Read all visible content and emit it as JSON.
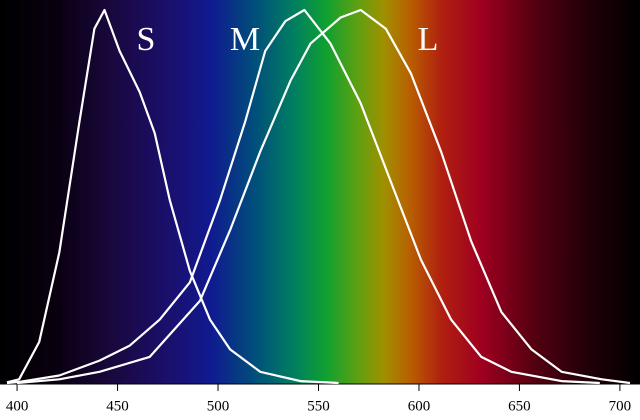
{
  "chart_data": {
    "type": "line",
    "series": [
      {
        "name": "S",
        "color": "#ffffff",
        "x": [
          395,
          401,
          411,
          421,
          431,
          438.5,
          443.5,
          451,
          461,
          468.5,
          476,
          486,
          496,
          506,
          521,
          541,
          560
        ],
        "values": [
          0.002,
          0.01,
          0.11,
          0.35,
          0.7,
          0.95,
          1.0,
          0.89,
          0.78,
          0.67,
          0.49,
          0.3,
          0.17,
          0.09,
          0.03,
          0.005,
          0.0
        ]
      },
      {
        "name": "M",
        "color": "#ffffff",
        "x": [
          395,
          401,
          421,
          441,
          456,
          471,
          486,
          501,
          513.5,
          523.5,
          533.5,
          543,
          556,
          571,
          586,
          601,
          616,
          631,
          646,
          671,
          690
        ],
        "values": [
          0.0,
          0.003,
          0.02,
          0.06,
          0.1,
          0.17,
          0.27,
          0.49,
          0.7,
          0.89,
          0.97,
          1.0,
          0.91,
          0.75,
          0.54,
          0.33,
          0.17,
          0.07,
          0.03,
          0.005,
          0.0
        ]
      },
      {
        "name": "L",
        "color": "#ffffff",
        "x": [
          400,
          421,
          441,
          466,
          491,
          506,
          521,
          536,
          546,
          561,
          571,
          583.5,
          596,
          611,
          626,
          641,
          656,
          671,
          691,
          705
        ],
        "values": [
          0.0,
          0.01,
          0.03,
          0.07,
          0.22,
          0.41,
          0.62,
          0.81,
          0.91,
          0.98,
          1.0,
          0.95,
          0.83,
          0.62,
          0.38,
          0.19,
          0.09,
          0.03,
          0.01,
          0.0
        ]
      }
    ],
    "xlim": [
      391.5,
      710
    ],
    "xticks": [
      400,
      450,
      500,
      550,
      600,
      650,
      700
    ],
    "ylim": [
      0,
      1
    ],
    "grid": false
  }
}
